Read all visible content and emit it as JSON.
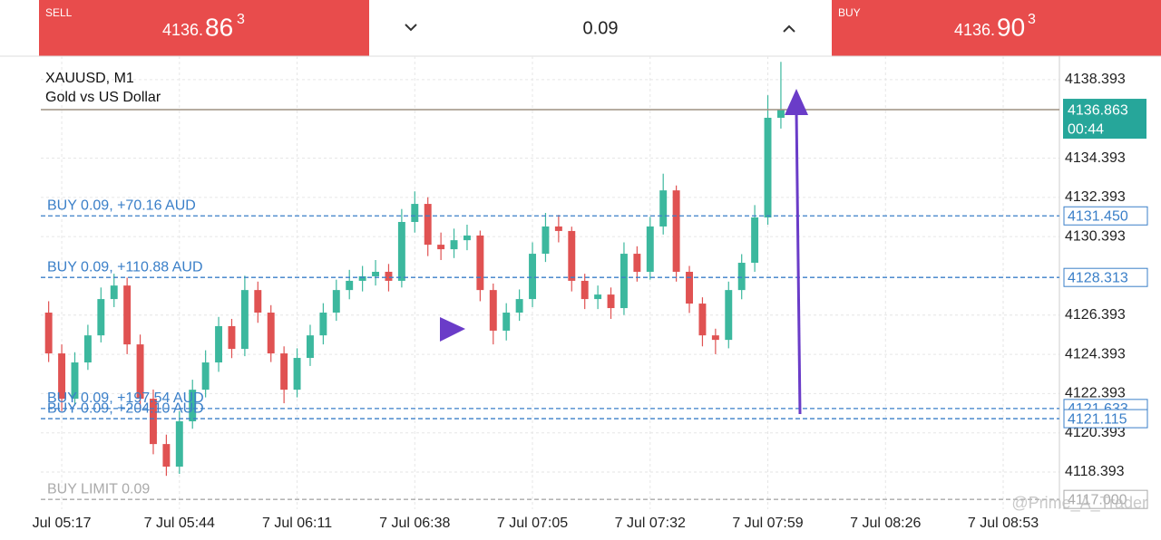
{
  "toolbar": {
    "sell": {
      "label": "SELL",
      "price_small": "4136.",
      "price_big": "86",
      "price_sup": "3"
    },
    "volume": "0.09",
    "buy": {
      "label": "BUY",
      "price_small": "4136.",
      "price_big": "90",
      "price_sup": "3"
    }
  },
  "chart_data": {
    "type": "candlestick",
    "title": "XAUUSD, M1",
    "subtitle": "Gold vs US Dollar",
    "up_color": "#3cb89e",
    "down_color": "#e05252",
    "grid": true,
    "open": [
      4126.52,
      4124.44,
      4122.13,
      4123.98,
      4125.36,
      4127.21,
      4127.9,
      4124.9,
      4122.13,
      4119.82,
      4118.67,
      4120.98,
      4122.59,
      4123.98,
      4125.83,
      4124.67,
      4127.67,
      4126.52,
      4124.44,
      4122.59,
      4124.21,
      4125.36,
      4126.52,
      4127.67,
      4128.14,
      4128.37,
      4128.6,
      4128.14,
      4131.14,
      4132.06,
      4129.98,
      4129.75,
      4130.21,
      4130.45,
      4127.67,
      4125.6,
      4126.52,
      4127.21,
      4129.52,
      4130.91,
      4130.68,
      4128.14,
      4127.21,
      4127.44,
      4126.75,
      4129.52,
      4128.6,
      4130.91,
      4132.75,
      4128.6,
      4126.98,
      4125.36,
      4125.13,
      4127.67,
      4129.06,
      4131.37,
      4136.45
    ],
    "high": [
      4127.1,
      4124.9,
      4124.5,
      4125.9,
      4127.8,
      4128.5,
      4128.3,
      4125.4,
      4122.6,
      4120.3,
      4121.5,
      4123.1,
      4124.6,
      4126.3,
      4126.2,
      4128.4,
      4128.1,
      4126.9,
      4124.8,
      4124.7,
      4125.9,
      4127.0,
      4128.2,
      4128.7,
      4128.9,
      4129.2,
      4129.0,
      4131.8,
      4132.7,
      4132.4,
      4130.6,
      4130.8,
      4131.0,
      4130.7,
      4128.0,
      4127.0,
      4127.7,
      4130.1,
      4131.6,
      4131.5,
      4130.9,
      4128.5,
      4127.9,
      4127.8,
      4130.1,
      4129.9,
      4131.4,
      4133.6,
      4133.0,
      4128.9,
      4127.3,
      4125.7,
      4128.1,
      4129.5,
      4132.0,
      4137.6,
      4139.3
    ],
    "low": [
      4124.0,
      4121.5,
      4121.8,
      4123.6,
      4125.0,
      4126.8,
      4124.4,
      4121.6,
      4119.3,
      4118.2,
      4118.3,
      4120.6,
      4122.2,
      4123.5,
      4124.2,
      4124.3,
      4126.0,
      4124.0,
      4121.9,
      4122.2,
      4123.8,
      4124.9,
      4126.1,
      4127.2,
      4127.6,
      4127.9,
      4127.6,
      4127.8,
      4130.6,
      4129.4,
      4129.2,
      4129.3,
      4129.7,
      4127.1,
      4124.9,
      4125.1,
      4126.1,
      4126.8,
      4129.1,
      4130.1,
      4127.6,
      4126.7,
      4126.7,
      4126.2,
      4126.4,
      4128.1,
      4128.2,
      4130.5,
      4128.1,
      4126.5,
      4124.8,
      4124.4,
      4124.7,
      4127.2,
      4128.6,
      4131.0,
      4135.9
    ],
    "close": [
      4124.44,
      4122.13,
      4123.98,
      4125.36,
      4127.21,
      4127.9,
      4124.9,
      4122.13,
      4119.82,
      4118.67,
      4120.98,
      4122.59,
      4123.98,
      4125.83,
      4124.67,
      4127.67,
      4126.52,
      4124.44,
      4122.59,
      4124.21,
      4125.36,
      4126.52,
      4127.67,
      4128.14,
      4128.37,
      4128.6,
      4128.14,
      4131.14,
      4132.06,
      4129.98,
      4129.75,
      4130.21,
      4130.45,
      4127.67,
      4125.6,
      4126.52,
      4127.21,
      4129.52,
      4130.91,
      4130.68,
      4128.14,
      4127.21,
      4127.44,
      4126.75,
      4129.52,
      4128.6,
      4130.91,
      4132.75,
      4128.6,
      4126.98,
      4125.36,
      4125.13,
      4127.67,
      4129.06,
      4131.37,
      4136.45,
      4136.86
    ],
    "xlim": [
      -0.6,
      77.3
    ],
    "xticks": [
      {
        "value": 1,
        "label": "Jul 05:17"
      },
      {
        "value": 10,
        "label": "7 Jul 05:44"
      },
      {
        "value": 19,
        "label": "7 Jul 06:11"
      },
      {
        "value": 28,
        "label": "7 Jul 06:38"
      },
      {
        "value": 37,
        "label": "7 Jul 07:05"
      },
      {
        "value": 46,
        "label": "7 Jul 07:32"
      },
      {
        "value": 55,
        "label": "7 Jul 07:59"
      },
      {
        "value": 64,
        "label": "7 Jul 08:26"
      },
      {
        "value": 73,
        "label": "7 Jul 08:53"
      }
    ],
    "ylim": [
      4116.5,
      4139.59
    ],
    "yticks": [
      4118.393,
      4120.393,
      4122.393,
      4124.393,
      4126.393,
      4130.393,
      4132.393,
      4134.393,
      4138.393
    ],
    "price_lines": [
      {
        "label": "BUY 0.09,  +70.16 AUD",
        "value": 4131.45,
        "value_label": "4131.450",
        "color": "#3a7fc8"
      },
      {
        "label": "BUY 0.09,  +110.88 AUD",
        "value": 4128.313,
        "value_label": "4128.313",
        "color": "#3a7fc8"
      },
      {
        "label": "BUY 0.09,  +197.54 AUD",
        "value": 4121.633,
        "value_label": "4121.633",
        "color": "#3a7fc8"
      },
      {
        "label": "BUY 0.09,  +204.10 AUD",
        "value": 4121.115,
        "value_label": "4121.115",
        "color": "#3a7fc8"
      },
      {
        "label": "BUY LIMIT 0.09",
        "value": 4117,
        "value_label": "4117.000",
        "color": "#aaaaaa"
      }
    ],
    "current_price": {
      "value": 4136.863,
      "time": "00:44",
      "color": "#26a69a"
    },
    "watermark": "@Prime_A_Trader"
  }
}
